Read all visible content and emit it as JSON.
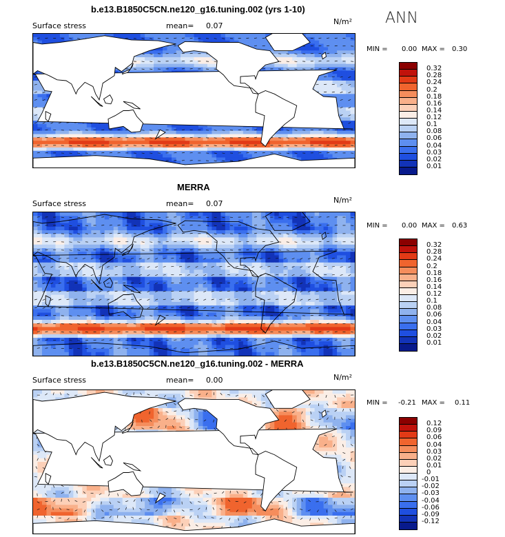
{
  "season": "ANN",
  "chart_data": [
    {
      "type": "heatmap",
      "title": "b.e13.B1850C5CN.ne120_g16.tuning.002 (yrs 1-10)",
      "variable": "Surface stress",
      "mean_label": "mean=",
      "mean": "0.07",
      "units": "N/m²",
      "min_label": "MIN =",
      "min": "0.00",
      "max_label": "MAX =",
      "max": "0.30",
      "colorbar_levels": [
        "0.32",
        "0.28",
        "0.24",
        "0.2",
        "0.18",
        "0.16",
        "0.14",
        "0.12",
        "0.1",
        "0.08",
        "0.06",
        "0.04",
        "0.03",
        "0.02",
        "0.01"
      ],
      "colorbar_colors": [
        "#8b0000",
        "#c0120b",
        "#e23a16",
        "#f0642e",
        "#f58d5c",
        "#f9b08a",
        "#fcd0b8",
        "#fbeee6",
        "#dde8f8",
        "#bad1f4",
        "#8fb2ee",
        "#5e8ff0",
        "#3a6fee",
        "#1f4fe0",
        "#1233b8",
        "#081a8c"
      ],
      "regime": "model"
    },
    {
      "type": "heatmap",
      "title": "MERRA",
      "variable": "Surface stress",
      "mean_label": "mean=",
      "mean": "0.07",
      "units": "N/m²",
      "min_label": "MIN =",
      "min": "0.00",
      "max_label": "MAX =",
      "max": "0.63",
      "colorbar_levels": [
        "0.32",
        "0.28",
        "0.24",
        "0.2",
        "0.18",
        "0.16",
        "0.14",
        "0.12",
        "0.1",
        "0.08",
        "0.06",
        "0.04",
        "0.03",
        "0.02",
        "0.01"
      ],
      "colorbar_colors": [
        "#8b0000",
        "#c0120b",
        "#e23a16",
        "#f0642e",
        "#f58d5c",
        "#f9b08a",
        "#fcd0b8",
        "#fbeee6",
        "#dde8f8",
        "#bad1f4",
        "#8fb2ee",
        "#5e8ff0",
        "#3a6fee",
        "#1f4fe0",
        "#1233b8",
        "#081a8c"
      ],
      "regime": "obs"
    },
    {
      "type": "heatmap",
      "title": "b.e13.B1850C5CN.ne120_g16.tuning.002 - MERRA",
      "variable": "Surface stress",
      "mean_label": "mean=",
      "mean": "0.00",
      "units": "N/m²",
      "min_label": "MIN =",
      "min": "-0.21",
      "max_label": "MAX =",
      "max": "0.11",
      "colorbar_levels": [
        "0.12",
        "0.09",
        "0.06",
        "0.04",
        "0.03",
        "0.02",
        "0.01",
        "0",
        "-0.01",
        "-0.02",
        "-0.03",
        "-0.04",
        "-0.06",
        "-0.09",
        "-0.12"
      ],
      "colorbar_colors": [
        "#8b0000",
        "#c0120b",
        "#e23a16",
        "#f0642e",
        "#f58d5c",
        "#f9b08a",
        "#fcd0b8",
        "#fbeee6",
        "#dde8f8",
        "#bad1f4",
        "#8fb2ee",
        "#5e8ff0",
        "#3a6fee",
        "#1f4fe0",
        "#1233b8",
        "#081a8c"
      ],
      "regime": "diff"
    }
  ]
}
